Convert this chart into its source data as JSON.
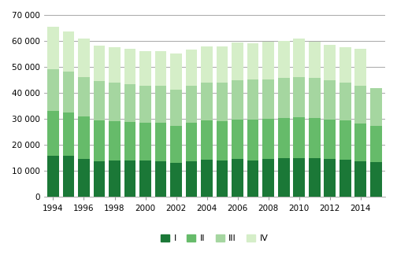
{
  "years": [
    1994,
    1995,
    1996,
    1997,
    1998,
    1999,
    2000,
    2001,
    2002,
    2003,
    2004,
    2005,
    2006,
    2007,
    2008,
    2009,
    2010,
    2011,
    2012,
    2013,
    2014,
    2015
  ],
  "Q1": [
    16000,
    16000,
    14800,
    13900,
    14200,
    14200,
    14100,
    13800,
    13200,
    13800,
    14300,
    14000,
    14600,
    14000,
    14700,
    14900,
    15000,
    15000,
    14700,
    14500,
    13900,
    13400
  ],
  "Q2": [
    17000,
    16500,
    16200,
    15500,
    15000,
    14800,
    14600,
    14800,
    14300,
    14700,
    15100,
    15200,
    15200,
    15800,
    15300,
    15600,
    15600,
    15500,
    15200,
    14900,
    14500,
    14000
  ],
  "Q3": [
    16000,
    15800,
    15200,
    15200,
    14800,
    14500,
    14200,
    14300,
    13900,
    14300,
    14500,
    14700,
    15200,
    15300,
    15300,
    15200,
    15400,
    15200,
    15000,
    14700,
    14400,
    14600
  ],
  "Q4": [
    16500,
    15200,
    14800,
    13600,
    13700,
    13500,
    13200,
    13300,
    13800,
    13900,
    14000,
    14000,
    14400,
    14100,
    14300,
    14400,
    14800,
    14100,
    13700,
    13600,
    14100,
    0
  ],
  "colors": [
    "#1b7837",
    "#66bb6a",
    "#a5d6a0",
    "#d5eec8"
  ],
  "ylim": [
    0,
    70000
  ],
  "yticks": [
    0,
    10000,
    20000,
    30000,
    40000,
    50000,
    60000,
    70000
  ],
  "ytick_labels": [
    "0",
    "10 000",
    "20 000",
    "30 000",
    "40 000",
    "50 000",
    "60 000",
    "70 000"
  ],
  "legend_labels": [
    "I",
    "II",
    "III",
    "IV"
  ],
  "background_color": "#ffffff",
  "grid_color": "#999999"
}
